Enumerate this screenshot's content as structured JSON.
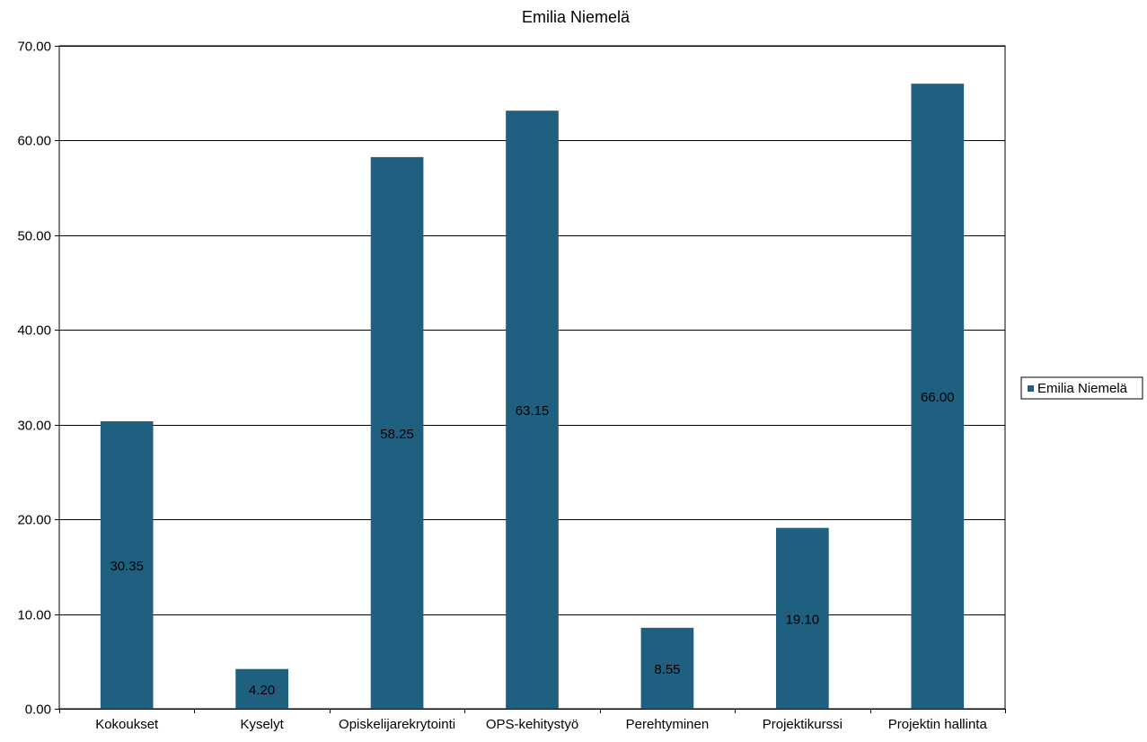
{
  "chart_data": {
    "type": "bar",
    "title": "Emilia Niemelä",
    "xlabel": "",
    "ylabel": "",
    "categories": [
      "Kokoukset",
      "Kyselyt",
      "Opiskelijarekrytointi",
      "OPS-kehitystyö",
      "Perehtyminen",
      "Projektikurssi",
      "Projektin hallinta"
    ],
    "series": [
      {
        "name": "Emilia Niemelä",
        "values": [
          30.35,
          4.2,
          58.25,
          63.15,
          8.55,
          19.1,
          66.0
        ],
        "data_labels": [
          "30.35",
          "4.20",
          "58.25",
          "63.15",
          "8.55",
          "19.10",
          "66.00"
        ],
        "color": "#1f5f80"
      }
    ],
    "ylim": [
      0,
      70
    ],
    "yticks": [
      0,
      10,
      20,
      30,
      40,
      50,
      60,
      70
    ],
    "ytick_labels": [
      "0.00",
      "10.00",
      "20.00",
      "30.00",
      "40.00",
      "50.00",
      "60.00",
      "70.00"
    ],
    "grid": true,
    "legend": "right"
  }
}
